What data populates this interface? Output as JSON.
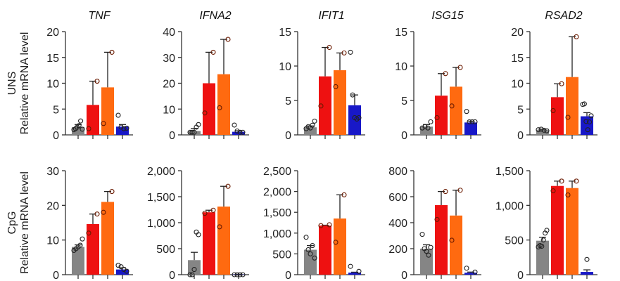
{
  "chart_data": {
    "type": "bar",
    "layout": "2 rows x 5 columns of bar charts with individual data points and error bars",
    "rows": [
      {
        "label": "UNS",
        "ylabel": "Relative mRNA level"
      },
      {
        "label": "CpG",
        "ylabel": "Relative mRNA level"
      }
    ],
    "group_colors": [
      "#858585",
      "#ee1111",
      "#ff6a10",
      "#1818c8"
    ],
    "panels": [
      {
        "row": 0,
        "title": "TNF",
        "ylim": [
          0,
          20
        ],
        "ticks": [
          0,
          5,
          10,
          15,
          20
        ],
        "tick_labels": [
          "0",
          "5",
          "10",
          "15",
          "20"
        ],
        "bars": [
          {
            "mean": 1.5,
            "err": 2.0,
            "points": [
              1.0,
              1.2,
              1.5,
              1.8,
              2.7,
              1.1
            ]
          },
          {
            "mean": 5.8,
            "err": 10.4,
            "points": [
              1.2,
              10.4
            ]
          },
          {
            "mean": 9.2,
            "err": 16,
            "points": [
              2.2,
              16
            ]
          },
          {
            "mean": 1.6,
            "err": 2.0,
            "points": [
              3.8,
              1.5,
              1.2,
              1.3
            ]
          }
        ]
      },
      {
        "row": 0,
        "title": "IFNA2",
        "ylim": [
          0,
          40
        ],
        "ticks": [
          0,
          10,
          20,
          30,
          40
        ],
        "tick_labels": [
          "0",
          "10",
          "20",
          "30",
          "40"
        ],
        "bars": [
          {
            "mean": 1.5,
            "err": 2.5,
            "points": [
              1,
              1,
              1,
              3,
              4
            ]
          },
          {
            "mean": 20,
            "err": 32,
            "points": [
              8.5,
              32
            ]
          },
          {
            "mean": 23.5,
            "err": 37,
            "points": [
              10.5,
              37
            ]
          },
          {
            "mean": 1.2,
            "err": 1.6,
            "points": [
              3.8,
              1.5,
              1,
              1
            ]
          }
        ]
      },
      {
        "row": 0,
        "title": "IFIT1",
        "ylim": [
          0,
          15
        ],
        "ticks": [
          0,
          5,
          10,
          15
        ],
        "tick_labels": [
          "0",
          "5",
          "10",
          "15"
        ],
        "bars": [
          {
            "mean": 1.1,
            "err": 1.3,
            "points": [
              0.9,
              1.2,
              1.0,
              1.4,
              2.0
            ]
          },
          {
            "mean": 8.5,
            "err": 12.7,
            "points": [
              4.2,
              12.7
            ]
          },
          {
            "mean": 9.4,
            "err": 11.9,
            "points": [
              7,
              11.9
            ]
          },
          {
            "mean": 4.3,
            "err": 5.8,
            "points": [
              12,
              5.8,
              2.5,
              2.3,
              2.5
            ]
          }
        ]
      },
      {
        "row": 0,
        "title": "ISG15",
        "ylim": [
          0,
          15
        ],
        "ticks": [
          0,
          5,
          10,
          15
        ],
        "tick_labels": [
          "0",
          "5",
          "10",
          "15"
        ],
        "bars": [
          {
            "mean": 1.2,
            "err": 1.5,
            "points": [
              1.0,
              1.2,
              1.0,
              1.9
            ]
          },
          {
            "mean": 5.7,
            "err": 8.9,
            "points": [
              2.5,
              8.9
            ]
          },
          {
            "mean": 7.0,
            "err": 9.8,
            "points": [
              4.2,
              9.8
            ]
          },
          {
            "mean": 1.8,
            "err": 2.0,
            "points": [
              3.4,
              1.9,
              1.9,
              1.9
            ]
          }
        ]
      },
      {
        "row": 0,
        "title": "RSAD2",
        "ylim": [
          0,
          20
        ],
        "ticks": [
          0,
          5,
          10,
          15,
          20
        ],
        "tick_labels": [
          "0",
          "5",
          "10",
          "15",
          "20"
        ],
        "bars": [
          {
            "mean": 1.0,
            "err": 1.1,
            "points": [
              1.0,
              1.1,
              0.9,
              0.8
            ]
          },
          {
            "mean": 7.3,
            "err": 9.9,
            "points": [
              4.7,
              9.9
            ]
          },
          {
            "mean": 11.2,
            "err": 19,
            "points": [
              3.4,
              19
            ]
          },
          {
            "mean": 3.6,
            "err": 4.3,
            "points": [
              5.9,
              6.0,
              2.6,
              1.0,
              2.5,
              3.7
            ]
          }
        ]
      },
      {
        "row": 1,
        "title": "",
        "ylim": [
          0,
          30
        ],
        "ticks": [
          0,
          10,
          20,
          30
        ],
        "tick_labels": [
          "0",
          "10",
          "20",
          "30"
        ],
        "bars": [
          {
            "mean": 8.0,
            "err": 8.6,
            "points": [
              7,
              7.5,
              8,
              8.5,
              10.3
            ]
          },
          {
            "mean": 14.6,
            "err": 17.5,
            "points": [
              12,
              17.5
            ]
          },
          {
            "mean": 21,
            "err": 24,
            "points": [
              18,
              24
            ]
          },
          {
            "mean": 1.5,
            "err": 2.0,
            "points": [
              2.7,
              2.3,
              1.5,
              1.0
            ]
          }
        ]
      },
      {
        "row": 1,
        "title": "",
        "ylim": [
          0,
          2000
        ],
        "ticks": [
          0,
          500,
          1000,
          1500,
          2000
        ],
        "tick_labels": [
          "0",
          "500",
          "1,000",
          "1,500",
          "2,000"
        ],
        "bars": [
          {
            "mean": 280,
            "err": 430,
            "points": [
              0,
              0,
              100,
              820,
              770
            ]
          },
          {
            "mean": 1200,
            "err": 1240,
            "points": [
              1180,
              1240
            ]
          },
          {
            "mean": 1310,
            "err": 1700,
            "points": [
              920,
              1700
            ]
          },
          {
            "mean": 5,
            "err": 8,
            "points": [
              0,
              0,
              0,
              0
            ]
          }
        ]
      },
      {
        "row": 1,
        "title": "",
        "ylim": [
          0,
          2500
        ],
        "ticks": [
          0,
          500,
          1000,
          1500,
          2000,
          2500
        ],
        "tick_labels": [
          "0",
          "500",
          "1,000",
          "1,500",
          "2,000",
          "2,500"
        ],
        "bars": [
          {
            "mean": 600,
            "err": 700,
            "points": [
              900,
              600,
              500,
              700,
              400
            ]
          },
          {
            "mean": 1180,
            "err": 1190,
            "points": [
              1180,
              1200
            ]
          },
          {
            "mean": 1350,
            "err": 1920,
            "points": [
              780,
              1920
            ]
          },
          {
            "mean": 50,
            "err": 60,
            "points": [
              200,
              80
            ]
          }
        ]
      },
      {
        "row": 1,
        "title": "",
        "ylim": [
          0,
          800
        ],
        "ticks": [
          0,
          200,
          400,
          600,
          800
        ],
        "tick_labels": [
          "0",
          "200",
          "400",
          "600",
          "800"
        ],
        "bars": [
          {
            "mean": 200,
            "err": 230,
            "points": [
              310,
              200,
              180,
              150,
              210
            ]
          },
          {
            "mean": 535,
            "err": 640,
            "points": [
              425,
              640
            ]
          },
          {
            "mean": 455,
            "err": 650,
            "points": [
              265,
              650
            ]
          },
          {
            "mean": 15,
            "err": 20,
            "points": [
              50,
              20
            ]
          }
        ]
      },
      {
        "row": 1,
        "title": "",
        "ylim": [
          0,
          1500
        ],
        "ticks": [
          0,
          500,
          1000,
          1500
        ],
        "tick_labels": [
          "0",
          "500",
          "1,000",
          "1,500"
        ],
        "bars": [
          {
            "mean": 490,
            "err": 540,
            "points": [
              400,
              420,
              410,
              500,
              600,
              640
            ]
          },
          {
            "mean": 1280,
            "err": 1350,
            "points": [
              1210,
              1350
            ]
          },
          {
            "mean": 1250,
            "err": 1350,
            "points": [
              1150,
              1350
            ]
          },
          {
            "mean": 40,
            "err": 70,
            "points": [
              220
            ]
          }
        ]
      }
    ]
  }
}
